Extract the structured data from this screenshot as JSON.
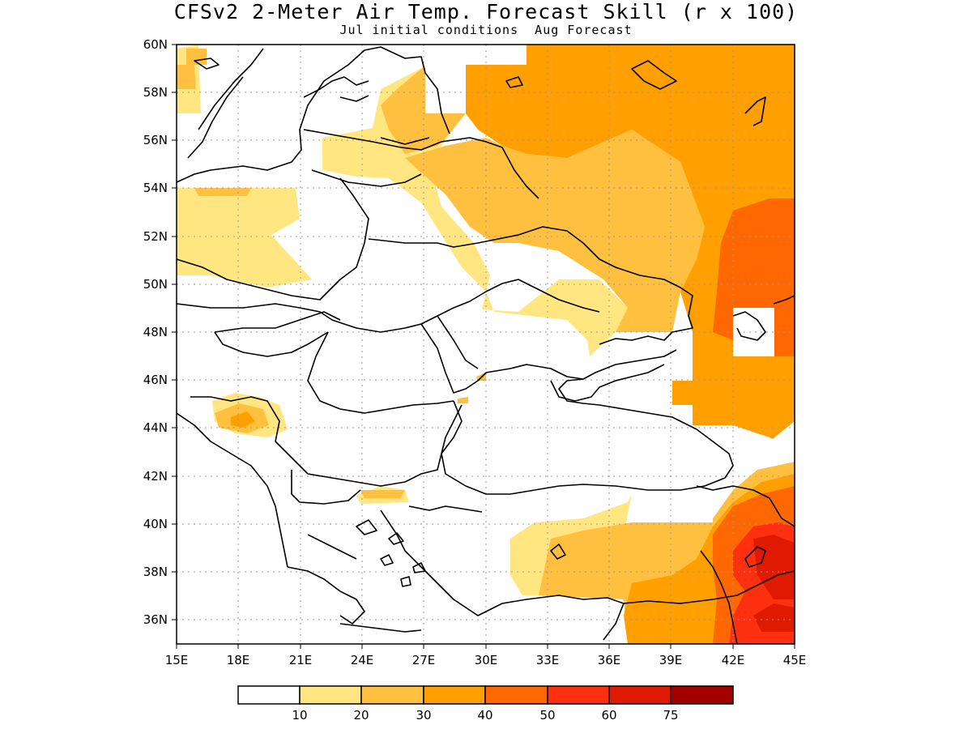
{
  "title": "CFSv2 2-Meter Air Temp. Forecast Skill (r x 100)",
  "subtitle": "Jul initial conditions  Aug Forecast",
  "map": {
    "lon_range": [
      15,
      45
    ],
    "lat_range": [
      35,
      60
    ],
    "lon_ticks": [
      "15E",
      "18E",
      "21E",
      "24E",
      "27E",
      "30E",
      "33E",
      "36E",
      "39E",
      "42E",
      "45E"
    ],
    "lat_ticks": [
      "36N",
      "38N",
      "40N",
      "42N",
      "44N",
      "46N",
      "48N",
      "50N",
      "52N",
      "54N",
      "56N",
      "58N",
      "60N"
    ],
    "grid": true
  },
  "colorbar": {
    "labels": [
      "10",
      "20",
      "30",
      "40",
      "50",
      "60",
      "75"
    ],
    "colors": [
      "#ffffff",
      "#ffe680",
      "#ffc040",
      "#ffa000",
      "#ff6800",
      "#ff3010",
      "#e01a00",
      "#a50000"
    ]
  }
}
